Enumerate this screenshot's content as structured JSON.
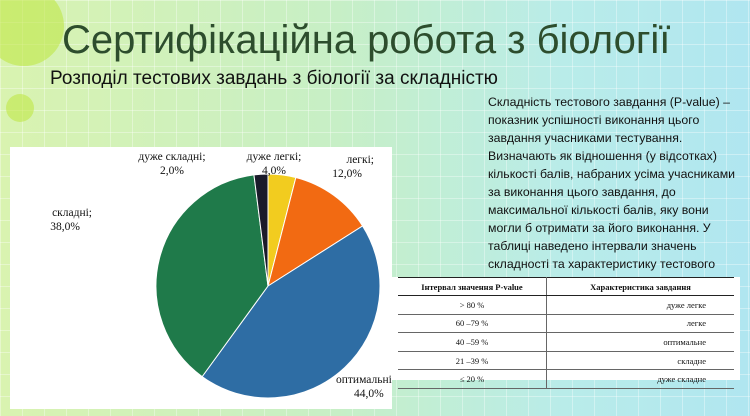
{
  "slide": {
    "title": "Сертифікаційна робота з біології",
    "subtitle": "Розподіл тестових завдань з біології за складністю"
  },
  "description": "Складність тестового завдання (P-value) – показник успішності виконання цього завдання учасниками тестування. Визначають як відношення (у відсотках) кількості балів, набраних усіма учасниками за виконання цього завдання, до максимальної кількості балів, яку вони могли б отримати за його виконання. У таблиці наведено інтервали значень складності та характеристику тестового завдання.",
  "table": {
    "headers": [
      "Інтервал значення P-value",
      "Характеристика завдання"
    ],
    "rows": [
      [
        "> 80 %",
        "дуже легке"
      ],
      [
        "60 –79 %",
        "легке"
      ],
      [
        "40 –59 %",
        "оптимальне"
      ],
      [
        "21 –39 %",
        "складне"
      ],
      [
        "≤ 20 %",
        "дуже складне"
      ]
    ]
  },
  "chart_data": {
    "type": "pie",
    "categories": [
      "дуже легкі",
      "легкі",
      "оптимальні",
      "складні",
      "дуже складні"
    ],
    "values": [
      4.0,
      12.0,
      44.0,
      38.0,
      2.0
    ],
    "labels": [
      "дуже легкі;",
      "легкі;",
      "оптимальні;",
      "складні;",
      "дуже складні;"
    ],
    "value_labels": [
      "4,0%",
      "12,0%",
      "44,0%",
      "38,0%",
      "2,0%"
    ],
    "colors": [
      "#f2cc1f",
      "#f26a12",
      "#2e6da4",
      "#1f7a4a",
      "#1a1a2a"
    ]
  }
}
